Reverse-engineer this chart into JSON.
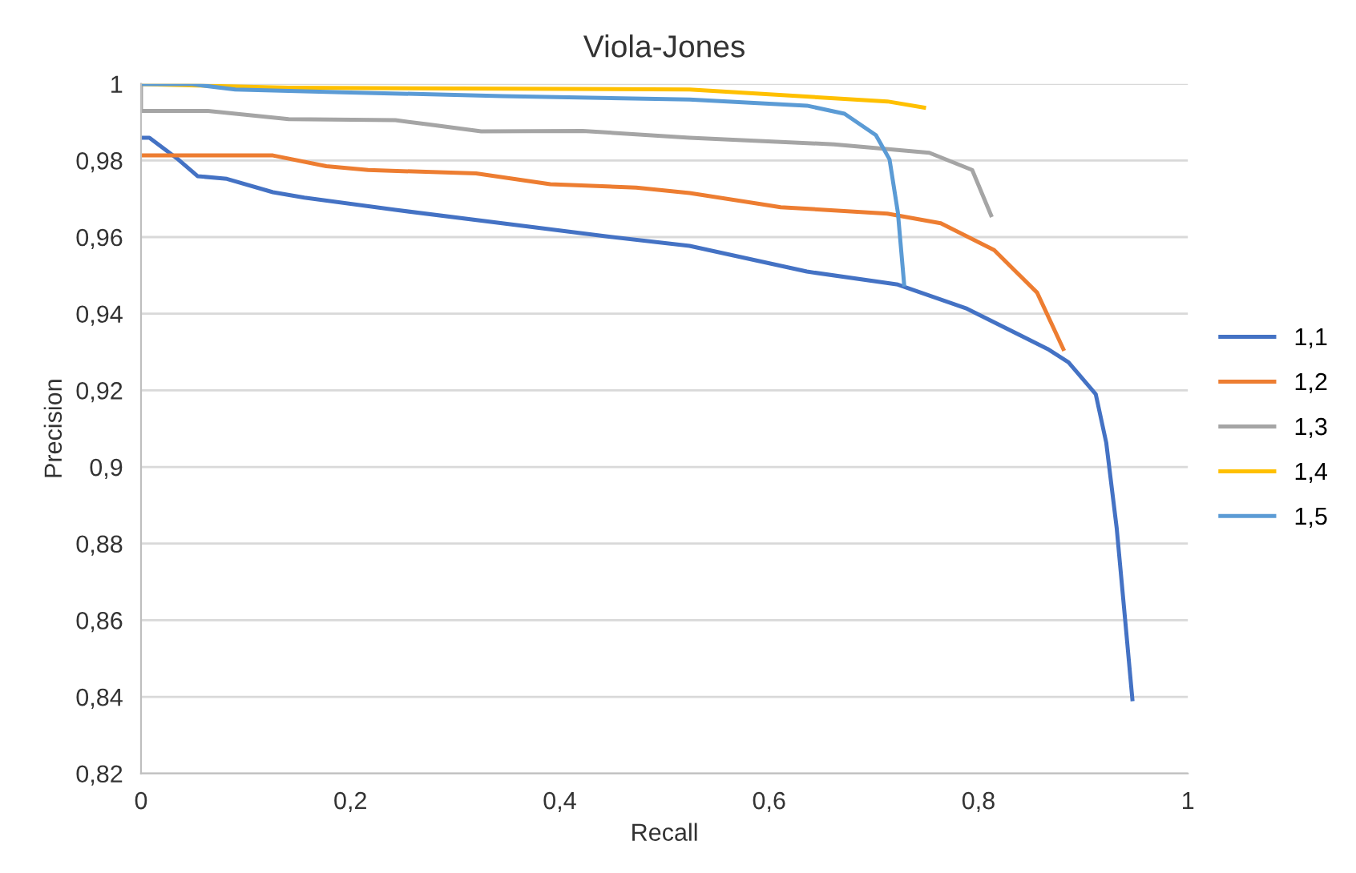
{
  "chart_data": {
    "type": "line",
    "title": "Viola-Jones",
    "xlabel": "Recall",
    "ylabel": "Precision",
    "xlim": [
      0,
      1
    ],
    "ylim": [
      0.82,
      1
    ],
    "xticks": [
      0,
      {
        "value": 0.2,
        "label": "0,2"
      },
      {
        "value": 0.4,
        "label": "0,4"
      },
      {
        "value": 0.6,
        "label": "0,6"
      },
      {
        "value": 0.8,
        "label": "0,8"
      },
      1
    ],
    "yticks": [
      {
        "value": 0.82,
        "label": "0,82"
      },
      {
        "value": 0.84,
        "label": "0,84"
      },
      {
        "value": 0.86,
        "label": "0,86"
      },
      {
        "value": 0.88,
        "label": "0,88"
      },
      {
        "value": 0.9,
        "label": "0,9"
      },
      {
        "value": 0.92,
        "label": "0,92"
      },
      {
        "value": 0.94,
        "label": "0,94"
      },
      {
        "value": 0.96,
        "label": "0,96"
      },
      {
        "value": 0.98,
        "label": "0,98"
      },
      1
    ],
    "grid": "y",
    "legend": "right",
    "marker": "none",
    "line_style": "solid",
    "series": [
      {
        "name": "1,1",
        "color": "#4472c4",
        "x": [
          0,
          0.008,
          0.034,
          0.054,
          0.082,
          0.126,
          0.156,
          0.243,
          0.345,
          0.447,
          0.524,
          0.636,
          0.723,
          0.789,
          0.866,
          0.886,
          0.912,
          0.922,
          0.932,
          0.94,
          0.947
        ],
        "values": [
          0.9859,
          0.9859,
          0.9806,
          0.9759,
          0.9752,
          0.9717,
          0.9703,
          0.9671,
          0.9636,
          0.9601,
          0.9577,
          0.951,
          0.9476,
          0.9413,
          0.9308,
          0.9273,
          0.919,
          0.9064,
          0.8841,
          0.8604,
          0.8394
        ]
      },
      {
        "name": "1,2",
        "color": "#ed7d31",
        "x": [
          0,
          0.126,
          0.177,
          0.217,
          0.32,
          0.391,
          0.473,
          0.524,
          0.611,
          0.713,
          0.764,
          0.815,
          0.856,
          0.881
        ],
        "values": [
          0.9813,
          0.9813,
          0.9785,
          0.9775,
          0.9766,
          0.9738,
          0.9729,
          0.9715,
          0.9678,
          0.9661,
          0.9636,
          0.9566,
          0.9455,
          0.9308
        ]
      },
      {
        "name": "1,3",
        "color": "#a5a5a5",
        "x": [
          0,
          0,
          0.064,
          0.141,
          0.243,
          0.274,
          0.325,
          0.422,
          0.524,
          0.662,
          0.753,
          0.794,
          0.812
        ],
        "values": [
          0.9999,
          0.9929,
          0.9929,
          0.9908,
          0.9905,
          0.9894,
          0.9876,
          0.9877,
          0.9859,
          0.9842,
          0.982,
          0.9775,
          0.9657
        ]
      },
      {
        "name": "1,4",
        "color": "#ffc000",
        "x": [
          0,
          0.141,
          0.524,
          0.713,
          0.748
        ],
        "values": [
          0.9999,
          0.999,
          0.9985,
          0.9954,
          0.9938
        ]
      },
      {
        "name": "1,5",
        "color": "#5b9bd5",
        "x": [
          0,
          0.049,
          0.09,
          0.192,
          0.345,
          0.524,
          0.636,
          0.672,
          0.702,
          0.715,
          0.723,
          0.729
        ],
        "values": [
          0.9999,
          0.9999,
          0.9985,
          0.9978,
          0.9968,
          0.9959,
          0.9943,
          0.9922,
          0.9866,
          0.9803,
          0.9664,
          0.9476
        ]
      }
    ]
  }
}
